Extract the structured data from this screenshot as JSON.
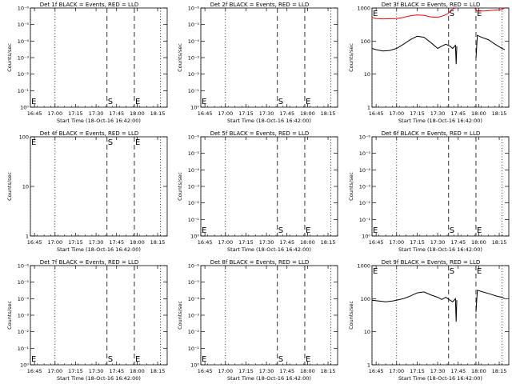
{
  "colors": {
    "events": "#000000",
    "lld": "#ff0000",
    "background": "#ffffff"
  },
  "shared": {
    "xlabel": "Start Time (18-Oct-16 16:42:00)",
    "ylabel": "Counts/sec",
    "x_ticks": [
      "16:45",
      "17:00",
      "17:15",
      "17:30",
      "17:45",
      "18:00",
      "18:15"
    ],
    "markers": {
      "E": "E",
      "S": "S"
    }
  },
  "chart_data": [
    {
      "type": "line",
      "title": "Det 1f BLACK = Events, RED = LLD",
      "scale": "log-decades",
      "y_ticks": [
        "10⁻⁶",
        "10⁻⁵",
        "10⁻⁴",
        "10⁻³",
        "10⁻²",
        "10⁻¹",
        "10⁰"
      ],
      "markers": [
        {
          "label": "E",
          "time": "16:42",
          "style": "dotted"
        },
        {
          "label": "S",
          "time": "17:38",
          "style": "dashed"
        },
        {
          "label": "E",
          "time": "17:58",
          "style": "dashed"
        },
        {
          "label": "",
          "time": "17:00",
          "style": "dotted"
        },
        {
          "label": "",
          "time": "18:17",
          "style": "dotted"
        }
      ],
      "series": []
    },
    {
      "type": "line",
      "title": "Det 2f BLACK = Events, RED = LLD",
      "scale": "log-decades",
      "y_ticks": [
        "10⁻⁶",
        "10⁻⁵",
        "10⁻⁴",
        "10⁻³",
        "10⁻²",
        "10⁻¹",
        "10⁰"
      ],
      "markers": [
        {
          "label": "E",
          "time": "16:42",
          "style": "dotted"
        },
        {
          "label": "S",
          "time": "17:38",
          "style": "dashed"
        },
        {
          "label": "E",
          "time": "17:58",
          "style": "dashed"
        },
        {
          "label": "",
          "time": "17:00",
          "style": "dotted"
        },
        {
          "label": "",
          "time": "18:17",
          "style": "dotted"
        }
      ],
      "series": []
    },
    {
      "type": "line",
      "title": "Det 3f BLACK = Events, RED = LLD",
      "scale": "log-1-1000",
      "y_ticks": [
        "1",
        "10",
        "100",
        "1000"
      ],
      "markers": [
        {
          "label": "E",
          "time": "16:42",
          "style": "dotted"
        },
        {
          "label": "S",
          "time": "17:38",
          "style": "dashed"
        },
        {
          "label": "E",
          "time": "17:58",
          "style": "dashed"
        },
        {
          "label": "",
          "time": "17:00",
          "style": "dotted"
        },
        {
          "label": "",
          "time": "18:17",
          "style": "dotted"
        }
      ],
      "series": [
        {
          "color": "red",
          "segments": [
            [
              [
                "16:42",
                520
              ],
              [
                "16:45",
                480
              ],
              [
                "16:50",
                470
              ],
              [
                "17:00",
                480
              ],
              [
                "17:05",
                520
              ],
              [
                "17:10",
                580
              ],
              [
                "17:15",
                620
              ],
              [
                "17:20",
                600
              ],
              [
                "17:25",
                540
              ],
              [
                "17:30",
                520
              ],
              [
                "17:35",
                600
              ],
              [
                "17:38",
                700
              ],
              [
                "17:40",
                900
              ],
              [
                "17:43",
                1000
              ]
            ],
            [
              [
                "17:57",
                1000
              ],
              [
                "17:59",
                800
              ],
              [
                "18:05",
                820
              ],
              [
                "18:10",
                850
              ],
              [
                "18:17",
                900
              ],
              [
                "18:19",
                1000
              ]
            ]
          ]
        },
        {
          "color": "black",
          "segments": [
            [
              [
                "16:42",
                60
              ],
              [
                "16:45",
                55
              ],
              [
                "16:50",
                50
              ],
              [
                "16:55",
                52
              ],
              [
                "17:00",
                60
              ],
              [
                "17:05",
                80
              ],
              [
                "17:10",
                110
              ],
              [
                "17:15",
                140
              ],
              [
                "17:20",
                130
              ],
              [
                "17:25",
                90
              ],
              [
                "17:30",
                60
              ],
              [
                "17:33",
                70
              ],
              [
                "17:36",
                80
              ],
              [
                "17:39",
                70
              ],
              [
                "17:41",
                60
              ],
              [
                "17:43",
                75
              ],
              [
                "17:43.5",
                20
              ],
              [
                "17:44",
                70
              ]
            ],
            [
              [
                "17:58",
                30
              ],
              [
                "17:59",
                150
              ],
              [
                "18:02",
                130
              ],
              [
                "18:07",
                110
              ],
              [
                "18:12",
                80
              ],
              [
                "18:17",
                60
              ],
              [
                "18:19",
                55
              ]
            ]
          ]
        }
      ]
    },
    {
      "type": "line",
      "title": "Det 4f BLACK = Events, RED = LLD",
      "scale": "log-1-100",
      "y_ticks": [
        "1",
        "10",
        "100"
      ],
      "markers": [
        {
          "label": "E",
          "time": "16:42",
          "style": "dotted"
        },
        {
          "label": "S",
          "time": "17:38",
          "style": "dashed"
        },
        {
          "label": "E",
          "time": "17:58",
          "style": "dashed"
        },
        {
          "label": "",
          "time": "17:00",
          "style": "dotted"
        },
        {
          "label": "",
          "time": "18:17",
          "style": "dotted"
        }
      ],
      "series": []
    },
    {
      "type": "line",
      "title": "Det 5f BLACK = Events, RED = LLD",
      "scale": "log-decades",
      "y_ticks": [
        "10⁻⁶",
        "10⁻⁵",
        "10⁻⁴",
        "10⁻³",
        "10⁻²",
        "10⁻¹",
        "10⁰"
      ],
      "markers": [
        {
          "label": "E",
          "time": "16:42",
          "style": "dotted"
        },
        {
          "label": "S",
          "time": "17:38",
          "style": "dashed"
        },
        {
          "label": "E",
          "time": "17:58",
          "style": "dashed"
        },
        {
          "label": "",
          "time": "17:00",
          "style": "dotted"
        },
        {
          "label": "",
          "time": "18:17",
          "style": "dotted"
        }
      ],
      "series": []
    },
    {
      "type": "line",
      "title": "Det 6f BLACK = Events, RED = LLD",
      "scale": "log-decades",
      "y_ticks": [
        "10⁻⁶",
        "10⁻⁵",
        "10⁻⁴",
        "10⁻³",
        "10⁻²",
        "10⁻¹",
        "10⁰"
      ],
      "markers": [
        {
          "label": "E",
          "time": "16:42",
          "style": "dotted"
        },
        {
          "label": "S",
          "time": "17:38",
          "style": "dashed"
        },
        {
          "label": "E",
          "time": "17:58",
          "style": "dashed"
        },
        {
          "label": "",
          "time": "17:00",
          "style": "dotted"
        },
        {
          "label": "",
          "time": "18:17",
          "style": "dotted"
        }
      ],
      "series": []
    },
    {
      "type": "line",
      "title": "Det 7f BLACK = Events, RED = LLD",
      "scale": "log-decades",
      "y_ticks": [
        "10⁻⁶",
        "10⁻⁵",
        "10⁻⁴",
        "10⁻³",
        "10⁻²",
        "10⁻¹",
        "10⁰"
      ],
      "markers": [
        {
          "label": "E",
          "time": "16:42",
          "style": "dotted"
        },
        {
          "label": "S",
          "time": "17:38",
          "style": "dashed"
        },
        {
          "label": "E",
          "time": "17:58",
          "style": "dashed"
        },
        {
          "label": "",
          "time": "17:00",
          "style": "dotted"
        },
        {
          "label": "",
          "time": "18:17",
          "style": "dotted"
        }
      ],
      "series": []
    },
    {
      "type": "line",
      "title": "Det 8f BLACK = Events, RED = LLD",
      "scale": "log-decades",
      "y_ticks": [
        "10⁻⁶",
        "10⁻⁵",
        "10⁻⁴",
        "10⁻³",
        "10⁻²",
        "10⁻¹",
        "10⁰"
      ],
      "markers": [
        {
          "label": "E",
          "time": "16:42",
          "style": "dotted"
        },
        {
          "label": "S",
          "time": "17:38",
          "style": "dashed"
        },
        {
          "label": "E",
          "time": "17:58",
          "style": "dashed"
        },
        {
          "label": "",
          "time": "17:00",
          "style": "dotted"
        },
        {
          "label": "",
          "time": "18:17",
          "style": "dotted"
        }
      ],
      "series": []
    },
    {
      "type": "line",
      "title": "Det 9f BLACK = Events, RED = LLD",
      "scale": "log-1-1000",
      "y_ticks": [
        "1",
        "10",
        "100",
        "1000"
      ],
      "markers": [
        {
          "label": "E",
          "time": "16:42",
          "style": "dotted"
        },
        {
          "label": "S",
          "time": "17:38",
          "style": "dashed"
        },
        {
          "label": "E",
          "time": "17:58",
          "style": "dashed"
        },
        {
          "label": "",
          "time": "17:00",
          "style": "dotted"
        },
        {
          "label": "",
          "time": "18:17",
          "style": "dotted"
        }
      ],
      "series": [
        {
          "color": "black",
          "segments": [
            [
              [
                "16:42",
                90
              ],
              [
                "16:47",
                85
              ],
              [
                "16:52",
                80
              ],
              [
                "16:57",
                85
              ],
              [
                "17:00",
                90
              ],
              [
                "17:05",
                100
              ],
              [
                "17:10",
                120
              ],
              [
                "17:15",
                150
              ],
              [
                "17:20",
                160
              ],
              [
                "17:25",
                130
              ],
              [
                "17:30",
                110
              ],
              [
                "17:33",
                95
              ],
              [
                "17:36",
                110
              ],
              [
                "17:39",
                90
              ],
              [
                "17:41",
                80
              ],
              [
                "17:43",
                100
              ],
              [
                "17:43.5",
                20
              ],
              [
                "17:44",
                90
              ]
            ],
            [
              [
                "17:58",
                40
              ],
              [
                "17:59",
                180
              ],
              [
                "18:03",
                160
              ],
              [
                "18:08",
                140
              ],
              [
                "18:13",
                120
              ],
              [
                "18:17",
                110
              ],
              [
                "18:19",
                100
              ]
            ]
          ]
        }
      ]
    }
  ]
}
